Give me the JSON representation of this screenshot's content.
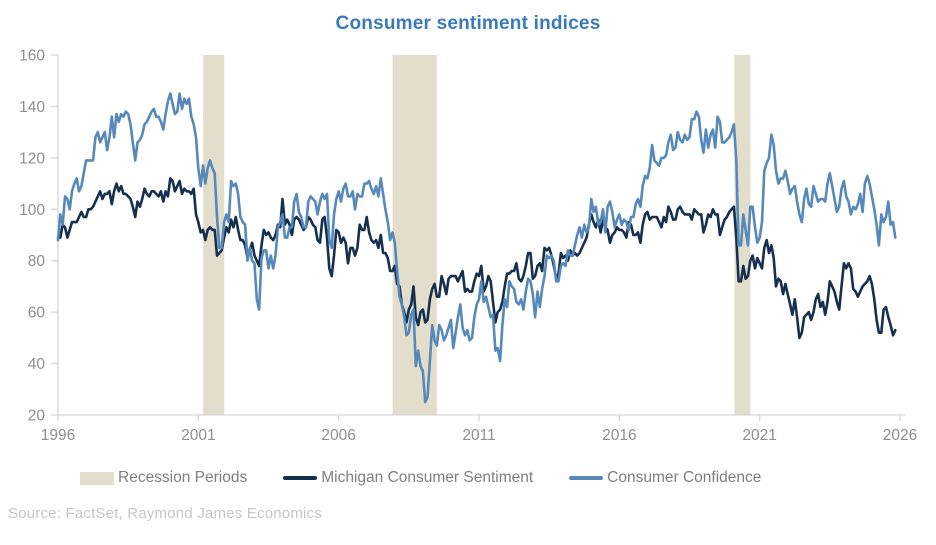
{
  "title": "Consumer sentiment indices",
  "source": "Source: FactSet, Raymond James Economics",
  "colors": {
    "title": "#3a7abc",
    "michigan": "#152f4e",
    "confidence": "#5689ba",
    "recession": "#e3decb",
    "axis": "#d6d6d6",
    "tick_label": "#8f8f8f",
    "legend_text": "#7f7f7f",
    "source_text": "#c6c6c6"
  },
  "legend": [
    {
      "label": "Recession Periods",
      "type": "box",
      "color": "#e3decb"
    },
    {
      "label": "Michigan Consumer Sentiment",
      "type": "line",
      "color": "#152f4e"
    },
    {
      "label": "Consumer Confidence",
      "type": "line",
      "color": "#5689ba"
    }
  ],
  "chart_data": {
    "type": "line",
    "title": "Consumer sentiment indices",
    "xlabel": "",
    "ylabel": "",
    "xlim": [
      1996,
      2026
    ],
    "ylim": [
      20,
      160
    ],
    "xticks": [
      1996,
      2001,
      2006,
      2011,
      2016,
      2021,
      2026
    ],
    "yticks": [
      20,
      40,
      60,
      80,
      100,
      120,
      140,
      160
    ],
    "grid": false,
    "legend_position": "bottom",
    "x_start_year": 1996,
    "x_interval_months": 1,
    "recession_periods": [
      [
        2001.17,
        2001.92
      ],
      [
        2007.92,
        2009.5
      ],
      [
        2020.1,
        2020.67
      ]
    ],
    "series": [
      {
        "id": "michigan",
        "name": "Michigan Consumer Sentiment",
        "color": "#152f4e",
        "values": [
          89,
          89,
          94,
          93,
          89,
          92,
          95,
          95,
          95,
          97,
          99,
          97,
          97,
          100,
          100,
          101,
          103,
          105,
          107,
          104,
          106,
          106,
          107,
          102,
          107,
          110,
          107,
          109,
          106,
          106,
          105,
          104,
          101,
          97,
          103,
          101,
          104,
          108,
          106,
          105,
          107,
          107,
          106,
          105,
          107,
          103,
          107,
          105,
          112,
          111,
          107,
          109,
          111,
          106,
          108,
          107,
          107,
          106,
          108,
          98,
          95,
          91,
          92,
          88,
          92,
          93,
          92,
          92,
          82,
          83,
          84,
          89,
          93,
          91,
          96,
          93,
          97,
          92,
          88,
          88,
          86,
          81,
          84,
          87,
          82,
          80,
          78,
          86,
          92,
          90,
          91,
          89,
          88,
          90,
          94,
          93,
          104,
          94,
          96,
          94,
          90,
          96,
          97,
          96,
          94,
          92,
          93,
          97,
          96,
          94,
          93,
          88,
          87,
          96,
          97,
          89,
          77,
          74,
          82,
          92,
          91,
          87,
          89,
          87,
          79,
          85,
          85,
          82,
          85,
          94,
          92,
          92,
          97,
          91,
          88,
          87,
          88,
          85,
          90,
          83,
          83,
          81,
          76,
          76,
          78,
          71,
          70,
          63,
          60,
          56,
          61,
          63,
          70,
          58,
          55,
          60,
          61,
          56,
          57,
          65,
          69,
          71,
          66,
          66,
          74,
          71,
          67,
          73,
          74,
          74,
          74,
          72,
          74,
          76,
          68,
          69,
          68,
          68,
          72,
          75,
          74,
          78,
          68,
          70,
          74,
          72,
          64,
          56,
          60,
          61,
          64,
          70,
          75,
          75,
          76,
          76,
          79,
          73,
          72,
          74,
          78,
          83,
          83,
          73,
          74,
          78,
          79,
          76,
          85,
          84,
          85,
          82,
          78,
          73,
          75,
          83,
          81,
          82,
          80,
          84,
          82,
          83,
          82,
          83,
          85,
          87,
          89,
          94,
          98,
          95,
          93,
          96,
          91,
          96,
          93,
          92,
          87,
          90,
          91,
          93,
          92,
          92,
          91,
          89,
          95,
          94,
          90,
          90,
          91,
          87,
          94,
          98,
          99,
          96,
          97,
          97,
          97,
          95,
          93,
          97,
          95,
          101,
          99,
          96,
          96,
          100,
          101,
          99,
          98,
          98,
          98,
          96,
          100,
          99,
          98,
          98,
          91,
          94,
          98,
          97,
          100,
          98,
          98,
          90,
          93,
          96,
          97,
          99,
          100,
          101,
          89,
          72,
          72,
          78,
          73,
          74,
          80,
          82,
          77,
          81,
          79,
          77,
          85,
          88,
          83,
          86,
          81,
          70,
          73,
          72,
          67,
          71,
          67,
          63,
          59,
          65,
          58,
          50,
          52,
          58,
          59,
          60,
          57,
          60,
          65,
          67,
          62,
          64,
          59,
          64,
          72,
          70,
          68,
          64,
          61,
          70,
          79,
          77,
          79,
          77,
          69,
          68,
          66,
          68,
          70,
          71,
          72,
          74,
          71,
          65,
          57,
          52,
          52,
          61,
          62,
          58,
          55,
          51,
          53
        ]
      },
      {
        "id": "confidence",
        "name": "Consumer Confidence",
        "color": "#5689ba",
        "values": [
          88,
          98,
          94,
          105,
          104,
          100,
          107,
          110,
          112,
          107,
          109,
          114,
          119,
          119,
          119,
          119,
          128,
          130,
          126,
          128,
          130,
          123,
          128,
          136,
          128,
          137,
          134,
          137,
          136,
          138,
          137,
          133,
          126,
          119,
          126,
          127,
          129,
          133,
          134,
          136,
          138,
          139,
          136,
          136,
          134,
          131,
          137,
          142,
          145,
          141,
          137,
          138,
          145,
          139,
          143,
          141,
          143,
          136,
          133,
          128,
          116,
          109,
          117,
          110,
          116,
          119,
          116,
          114,
          97,
          85,
          85,
          95,
          98,
          95,
          111,
          109,
          110,
          106,
          97,
          95,
          94,
          80,
          85,
          80,
          79,
          65,
          61,
          81,
          84,
          84,
          77,
          82,
          77,
          82,
          93,
          95,
          98,
          89,
          89,
          93,
          93,
          103,
          106,
          99,
          97,
          93,
          93,
          103,
          105,
          104,
          103,
          98,
          103,
          106,
          104,
          106,
          88,
          85,
          98,
          104,
          107,
          103,
          108,
          110,
          105,
          105,
          107,
          100,
          106,
          105,
          105,
          110,
          110,
          111,
          108,
          106,
          109,
          105,
          112,
          106,
          100,
          95,
          88,
          91,
          87,
          76,
          66,
          63,
          58,
          51,
          52,
          59,
          61,
          39,
          45,
          39,
          37,
          25,
          27,
          41,
          55,
          49,
          47,
          55,
          53,
          49,
          51,
          54,
          57,
          46,
          52,
          58,
          63,
          54,
          51,
          53,
          49,
          50,
          58,
          63,
          65,
          72,
          64,
          66,
          62,
          58,
          59,
          45,
          46,
          41,
          55,
          65,
          62,
          72,
          70,
          69,
          64,
          63,
          65,
          61,
          68,
          73,
          72,
          67,
          58,
          68,
          62,
          69,
          74,
          82,
          81,
          82,
          80,
          72,
          72,
          78,
          79,
          78,
          84,
          82,
          82,
          86,
          90,
          93,
          89,
          94,
          91,
          93,
          104,
          99,
          101,
          94,
          95,
          100,
          91,
          101,
          103,
          99,
          93,
          96,
          98,
          94,
          96,
          95,
          92,
          97,
          97,
          102,
          104,
          101,
          109,
          113,
          112,
          116,
          125,
          119,
          118,
          117,
          120,
          120,
          121,
          126,
          129,
          123,
          124,
          130,
          127,
          126,
          129,
          127,
          128,
          135,
          135,
          138,
          136,
          127,
          122,
          131,
          124,
          129,
          131,
          124,
          136,
          134,
          126,
          126,
          127,
          128,
          130,
          133,
          119,
          86,
          86,
          98,
          92,
          86,
          101,
          101,
          93,
          87,
          89,
          95,
          115,
          118,
          120,
          129,
          125,
          115,
          110,
          112,
          112,
          115,
          111,
          106,
          108,
          109,
          103,
          98,
          95,
          104,
          108,
          102,
          101,
          109,
          106,
          103,
          104,
          104,
          103,
          110,
          114,
          109,
          104,
          99,
          101,
          108,
          111,
          105,
          103,
          98,
          101,
          100,
          102,
          106,
          99,
          110,
          113,
          110,
          105,
          100,
          94,
          86,
          98,
          95,
          97,
          103,
          94,
          95,
          89
        ]
      }
    ]
  }
}
